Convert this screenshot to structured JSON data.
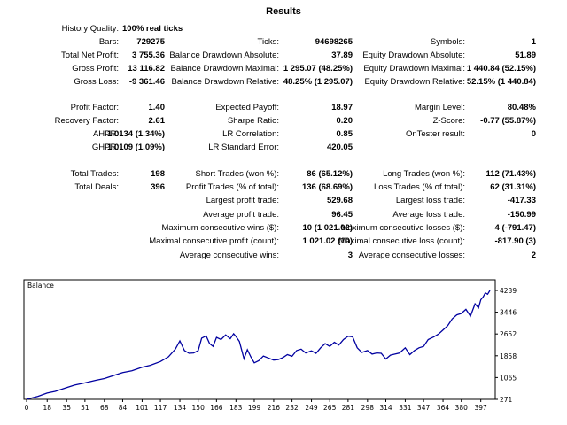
{
  "title": "Results",
  "history_quality": {
    "label": "History Quality:",
    "value": "100% real ticks"
  },
  "stats": {
    "bars": {
      "label": "Bars:",
      "value": "729275"
    },
    "ticks": {
      "label": "Ticks:",
      "value": "94698265"
    },
    "symbols": {
      "label": "Symbols:",
      "value": "1"
    },
    "total_net_profit": {
      "label": "Total Net Profit:",
      "value": "3 755.36"
    },
    "balance_dd_abs": {
      "label": "Balance Drawdown Absolute:",
      "value": "37.89"
    },
    "equity_dd_abs": {
      "label": "Equity Drawdown Absolute:",
      "value": "51.89"
    },
    "gross_profit": {
      "label": "Gross Profit:",
      "value": "13 116.82"
    },
    "balance_dd_max": {
      "label": "Balance Drawdown Maximal:",
      "value": "1 295.07 (48.25%)"
    },
    "equity_dd_max": {
      "label": "Equity Drawdown Maximal:",
      "value": "1 440.84 (52.15%)"
    },
    "gross_loss": {
      "label": "Gross Loss:",
      "value": "-9 361.46"
    },
    "balance_dd_rel": {
      "label": "Balance Drawdown Relative:",
      "value": "48.25% (1 295.07)"
    },
    "equity_dd_rel": {
      "label": "Equity Drawdown Relative:",
      "value": "52.15% (1 440.84)"
    },
    "profit_factor": {
      "label": "Profit Factor:",
      "value": "1.40"
    },
    "expected_payoff": {
      "label": "Expected Payoff:",
      "value": "18.97"
    },
    "margin_level": {
      "label": "Margin Level:",
      "value": "80.48%"
    },
    "recovery_factor": {
      "label": "Recovery Factor:",
      "value": "2.61"
    },
    "sharpe_ratio": {
      "label": "Sharpe Ratio:",
      "value": "0.20"
    },
    "z_score": {
      "label": "Z-Score:",
      "value": "-0.77 (55.87%)"
    },
    "ahpr": {
      "label": "AHPR:",
      "value": "1.0134 (1.34%)"
    },
    "lr_correlation": {
      "label": "LR Correlation:",
      "value": "0.85"
    },
    "ontester": {
      "label": "OnTester result:",
      "value": "0"
    },
    "ghpr": {
      "label": "GHPR:",
      "value": "1.0109 (1.09%)"
    },
    "lr_std_error": {
      "label": "LR Standard Error:",
      "value": "420.05"
    },
    "total_trades": {
      "label": "Total Trades:",
      "value": "198"
    },
    "short_trades": {
      "label": "Short Trades (won %):",
      "value": "86 (65.12%)"
    },
    "long_trades": {
      "label": "Long Trades (won %):",
      "value": "112 (71.43%)"
    },
    "total_deals": {
      "label": "Total Deals:",
      "value": "396"
    },
    "profit_trades": {
      "label": "Profit Trades (% of total):",
      "value": "136 (68.69%)"
    },
    "loss_trades": {
      "label": "Loss Trades (% of total):",
      "value": "62 (31.31%)"
    },
    "largest_profit": {
      "label": "Largest profit trade:",
      "value": "529.68"
    },
    "largest_loss": {
      "label": "Largest loss trade:",
      "value": "-417.33"
    },
    "avg_profit": {
      "label": "Average profit trade:",
      "value": "96.45"
    },
    "avg_loss": {
      "label": "Average loss trade:",
      "value": "-150.99"
    },
    "max_consec_wins": {
      "label": "Maximum consecutive wins ($):",
      "value": "10 (1 021.02)"
    },
    "max_consec_losses": {
      "label": "Maximum consecutive losses ($):",
      "value": "4 (-791.47)"
    },
    "max_consec_profit": {
      "label": "Maximal consecutive profit (count):",
      "value": "1 021.02 (10)"
    },
    "max_consec_loss": {
      "label": "Maximal consecutive loss (count):",
      "value": "-817.90 (3)"
    },
    "avg_consec_wins": {
      "label": "Average consecutive wins:",
      "value": "3"
    },
    "avg_consec_losses": {
      "label": "Average consecutive losses:",
      "value": "2"
    }
  },
  "chart_data": {
    "type": "line",
    "title": "Balance",
    "line_color": "#0000a0",
    "x_ticks": [
      "0",
      "18",
      "35",
      "51",
      "68",
      "84",
      "101",
      "117",
      "134",
      "150",
      "166",
      "183",
      "199",
      "216",
      "232",
      "249",
      "265",
      "281",
      "298",
      "314",
      "331",
      "347",
      "364",
      "380",
      "397"
    ],
    "y_ticks": [
      "271",
      "1065",
      "1858",
      "2652",
      "3446",
      "4239"
    ],
    "xlim": [
      0,
      405
    ],
    "ylim": [
      271,
      4239
    ],
    "grid": false,
    "x": [
      0,
      10,
      18,
      25,
      35,
      42,
      51,
      60,
      68,
      76,
      84,
      92,
      101,
      108,
      117,
      124,
      130,
      134,
      138,
      142,
      146,
      150,
      153,
      157,
      160,
      163,
      166,
      170,
      174,
      178,
      181,
      183,
      186,
      190,
      193,
      196,
      199,
      203,
      207,
      211,
      216,
      220,
      224,
      228,
      232,
      236,
      240,
      244,
      249,
      253,
      257,
      261,
      265,
      269,
      273,
      277,
      281,
      285,
      289,
      293,
      298,
      302,
      306,
      310,
      314,
      318,
      322,
      326,
      331,
      335,
      339,
      343,
      347,
      351,
      356,
      360,
      364,
      368,
      372,
      376,
      380,
      384,
      388,
      392,
      395,
      397,
      399,
      401,
      403,
      405
    ],
    "y": [
      271,
      380,
      500,
      560,
      700,
      790,
      870,
      960,
      1030,
      1140,
      1250,
      1310,
      1440,
      1510,
      1650,
      1820,
      2100,
      2400,
      2050,
      1950,
      1960,
      2050,
      2500,
      2580,
      2300,
      2200,
      2530,
      2450,
      2620,
      2480,
      2660,
      2560,
      2380,
      1750,
      2080,
      1820,
      1600,
      1680,
      1850,
      1780,
      1700,
      1720,
      1790,
      1900,
      1840,
      2050,
      2100,
      1960,
      2040,
      1950,
      2150,
      2300,
      2200,
      2350,
      2250,
      2450,
      2570,
      2550,
      2150,
      1980,
      2050,
      1920,
      1960,
      1950,
      1740,
      1880,
      1920,
      1960,
      2150,
      1900,
      2050,
      2150,
      2200,
      2450,
      2550,
      2650,
      2800,
      2950,
      3200,
      3350,
      3400,
      3550,
      3300,
      3750,
      3600,
      3900,
      4000,
      4150,
      4100,
      4239
    ]
  }
}
